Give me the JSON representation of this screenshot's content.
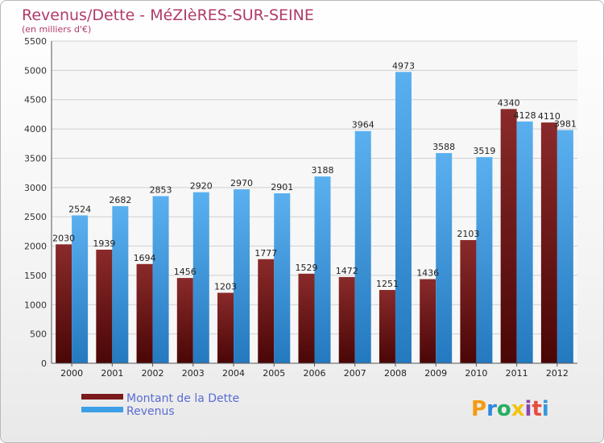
{
  "chart_data": {
    "type": "bar",
    "title": "Revenus/Dette - MéZIèRES-SUR-SEINE",
    "subtitle": "(en milliers d'€)",
    "categories": [
      "2000",
      "2001",
      "2002",
      "2003",
      "2004",
      "2005",
      "2006",
      "2007",
      "2008",
      "2009",
      "2010",
      "2011",
      "2012"
    ],
    "series": [
      {
        "name": "Montant de la Dette",
        "color": "#7a1a1a",
        "values": [
          2030,
          1939,
          1694,
          1456,
          1203,
          1777,
          1529,
          1472,
          1251,
          1436,
          2103,
          4340,
          4110
        ],
        "labels": [
          "2030",
          "1939",
          "1694",
          "1456",
          "1203",
          "1777",
          "1529",
          "1472",
          "1251",
          "1436",
          "2103",
          "4340",
          "4110"
        ]
      },
      {
        "name": "Revenus",
        "color": "#3d9fe6",
        "values": [
          2524,
          2682,
          2853,
          2920,
          2970,
          2901,
          3188,
          3964,
          4973,
          3588,
          3519,
          4128,
          3981
        ],
        "labels": [
          "2524",
          "2682",
          "2853",
          "2920",
          "2970",
          "2901",
          "3188",
          "3964",
          "4973",
          "3588",
          "3519",
          "4128",
          "3981"
        ]
      }
    ],
    "ylim": [
      0,
      5500
    ],
    "yticks": [
      "0",
      "500",
      "1000",
      "1500",
      "2000",
      "2500",
      "3000",
      "3500",
      "4000",
      "4500",
      "5000",
      "5500"
    ],
    "grid": true,
    "legend_placement": "bottom-left"
  },
  "brand": {
    "letters": [
      "P",
      "r",
      "o",
      "x",
      "i",
      "t",
      "i"
    ],
    "colors": [
      "#f39c12",
      "#2e86de",
      "#27ae60",
      "#f1c40f",
      "#8e44ad",
      "#e74c3c",
      "#3498db"
    ]
  }
}
